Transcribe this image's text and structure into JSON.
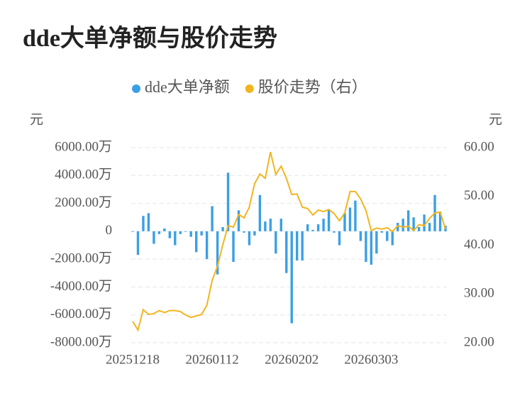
{
  "chart_data": {
    "type": "bar_line",
    "title": "dde大单净额与股价走势",
    "y_unit": "元",
    "y2_unit": "元",
    "categories": [
      "20251218",
      null,
      null,
      null,
      null,
      null,
      null,
      null,
      null,
      null,
      null,
      null,
      null,
      null,
      null,
      "20260112",
      null,
      null,
      null,
      null,
      null,
      null,
      null,
      null,
      null,
      null,
      null,
      null,
      null,
      null,
      "20260202",
      null,
      null,
      null,
      null,
      null,
      null,
      null,
      null,
      null,
      null,
      null,
      null,
      null,
      null,
      "20260303",
      null,
      null,
      null,
      null,
      null,
      null,
      null,
      null,
      null,
      null,
      null,
      null,
      null,
      null
    ],
    "series": [
      {
        "name": "dde大单净额",
        "color": "#3b9fe6",
        "kind": "bar",
        "values": [
          0,
          -1700,
          1100,
          1300,
          -900,
          -200,
          200,
          -500,
          -1000,
          -200,
          0,
          -400,
          -1500,
          -300,
          -2000,
          1800,
          -3100,
          300,
          4200,
          -2200,
          1500,
          -100,
          -1000,
          -300,
          2600,
          700,
          900,
          -1600,
          900,
          -3000,
          -6600,
          -2100,
          -2100,
          500,
          100,
          500,
          900,
          1500,
          -100,
          -1000,
          1300,
          1700,
          2200,
          -700,
          -2200,
          -2400,
          -1600,
          -100,
          -700,
          -1000,
          600,
          900,
          1500,
          1000,
          300,
          1200,
          600,
          2600,
          1400,
          400
        ]
      },
      {
        "name": "股价走势（右）",
        "color": "#f3b51f",
        "kind": "line",
        "axis": "y2",
        "values": [
          24.4,
          22.6,
          26.8,
          25.8,
          26.0,
          26.6,
          26.2,
          26.6,
          26.6,
          26.4,
          25.7,
          25.2,
          25.5,
          25.8,
          27.7,
          32.8,
          35.7,
          40.1,
          44.0,
          43.7,
          46.3,
          45.6,
          47.8,
          52.6,
          54.6,
          53.7,
          59.1,
          54.5,
          56.2,
          53.7,
          50.4,
          50.5,
          47.8,
          47.5,
          46.2,
          47.2,
          46.9,
          47.3,
          46.5,
          45.0,
          46.6,
          51.0,
          51.0,
          49.5,
          47.1,
          43.0,
          43.5,
          43.3,
          43.6,
          42.8,
          44.0,
          43.7,
          43.9,
          43.0,
          44.2,
          44.0,
          45.5,
          46.6,
          46.8,
          43.3
        ]
      }
    ],
    "ylim": [
      -8000,
      6000
    ],
    "yticks": [
      {
        "value": -8000,
        "label": "-8000.00万"
      },
      {
        "value": -6000,
        "label": "-6000.00万"
      },
      {
        "value": -4000,
        "label": "-4000.00万"
      },
      {
        "value": -2000,
        "label": "-2000.00万"
      },
      0,
      {
        "value": 2000,
        "label": "2000.00万"
      },
      {
        "value": 4000,
        "label": "4000.00万"
      },
      {
        "value": 6000,
        "label": "6000.00万"
      }
    ],
    "y2lim": [
      20,
      60
    ],
    "y2ticks": [
      {
        "value": 20,
        "label": "20.00"
      },
      {
        "value": 30,
        "label": "30.00"
      },
      {
        "value": 40,
        "label": "40.00"
      },
      {
        "value": 50,
        "label": "50.00"
      },
      {
        "value": 60,
        "label": "60.00"
      }
    ],
    "grid": true
  }
}
